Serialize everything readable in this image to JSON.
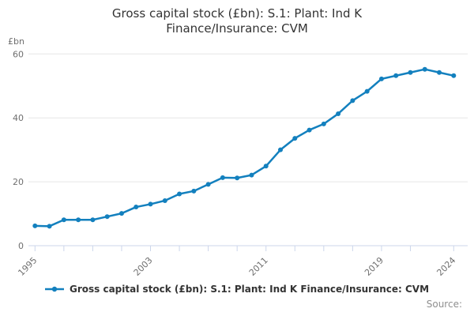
{
  "title": {
    "line1": "Gross capital stock (£bn): S.1: Plant: Ind K",
    "line2": "Finance/Insurance: CVM"
  },
  "y_axis": {
    "unit_label": "£bn",
    "tick_labels": [
      "0",
      "20",
      "40",
      "60"
    ]
  },
  "x_axis": {
    "labeled_years": [
      1995,
      2003,
      2011,
      2019,
      2024
    ],
    "tick_years": [
      1995,
      1997,
      1999,
      2001,
      2003,
      2005,
      2007,
      2009,
      2011,
      2013,
      2015,
      2017,
      2019,
      2021,
      2024
    ]
  },
  "legend": {
    "label": "Gross capital stock (£bn): S.1: Plant: Ind K Finance/Insurance: CVM",
    "marker": "line-with-dot"
  },
  "source": {
    "label": "Source:"
  },
  "colors": {
    "line": "#1380be",
    "marker": "#1380be",
    "grid": "#e6e6e6",
    "axis_line": "#ccd6eb",
    "tick": "#ccd6eb",
    "title_text": "#333333",
    "axis_text": "#6f6f6f",
    "legend_text": "#333333",
    "source_text": "#8f8f8f",
    "background": "#ffffff"
  },
  "chart_data": {
    "type": "line",
    "title": "Gross capital stock (£bn): S.1: Plant: Ind K Finance/Insurance: CVM",
    "xlabel": "",
    "ylabel": "£bn",
    "ylim": [
      0,
      60
    ],
    "yticks": [
      0,
      20,
      40,
      60
    ],
    "grid": true,
    "legend_position": "bottom",
    "x": [
      1995,
      1996,
      1997,
      1998,
      1999,
      2000,
      2001,
      2002,
      2003,
      2004,
      2005,
      2006,
      2007,
      2008,
      2009,
      2010,
      2011,
      2012,
      2013,
      2014,
      2015,
      2016,
      2017,
      2018,
      2019,
      2020,
      2021,
      2022,
      2023,
      2024
    ],
    "series": [
      {
        "name": "Gross capital stock (£bn): S.1: Plant: Ind K Finance/Insurance: CVM",
        "values": [
          6.2,
          6.1,
          8.1,
          8.1,
          8.1,
          9.1,
          10.1,
          12.1,
          13.0,
          14.1,
          16.2,
          17.1,
          19.2,
          21.3,
          21.2,
          22.1,
          24.9,
          30.0,
          33.6,
          36.2,
          38.1,
          41.3,
          45.4,
          48.3,
          52.2,
          53.2,
          54.2,
          55.2,
          54.2,
          53.2
        ]
      }
    ]
  }
}
